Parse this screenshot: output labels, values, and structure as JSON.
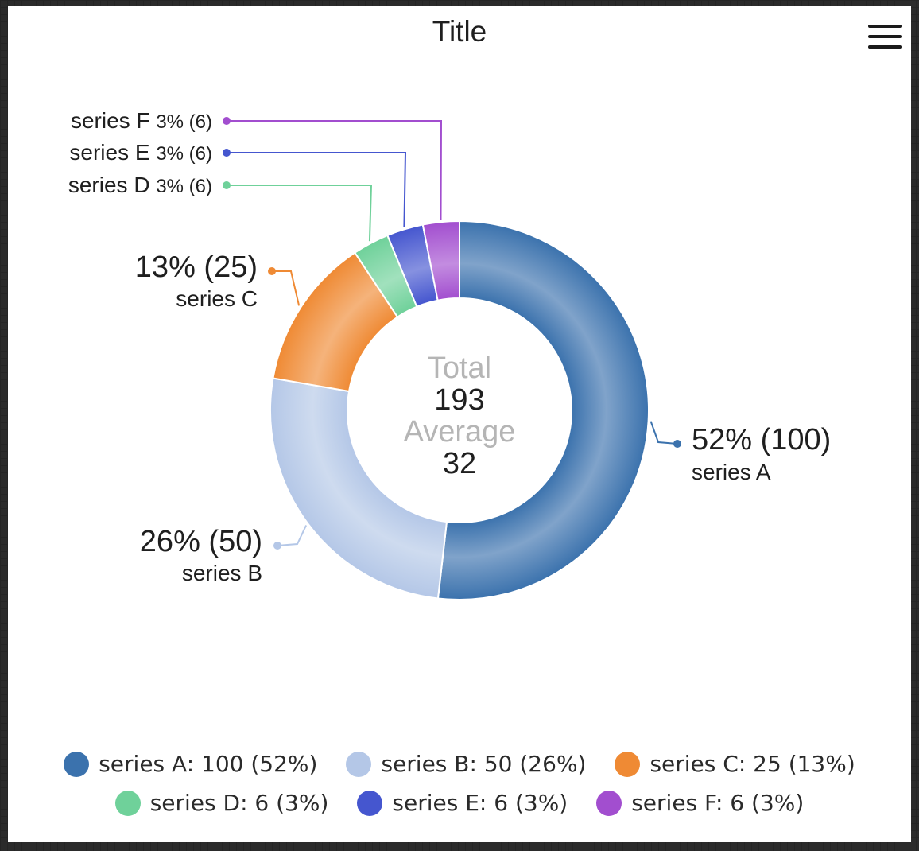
{
  "chart_data": {
    "type": "pie",
    "variant": "donut",
    "title": "Title",
    "categories": [
      "series A",
      "series B",
      "series C",
      "series D",
      "series E",
      "series F"
    ],
    "values": [
      100,
      50,
      25,
      6,
      6,
      6
    ],
    "percentages": [
      "52%",
      "26%",
      "13%",
      "3%",
      "3%",
      "3%"
    ],
    "colors": [
      "#3b72ad",
      "#b4c7e7",
      "#ef8a34",
      "#6fd19a",
      "#4556cf",
      "#a24ecf"
    ],
    "center": {
      "total_label": "Total",
      "total_value": "193",
      "average_label": "Average",
      "average_value": "32"
    },
    "data_labels": [
      {
        "main": "52% (100)",
        "sub": "series A"
      },
      {
        "main": "26% (50)",
        "sub": "series B"
      },
      {
        "main": "13% (25)",
        "sub": "series C"
      },
      {
        "name": "series D",
        "value": "3% (6)"
      },
      {
        "name": "series E",
        "value": "3% (6)"
      },
      {
        "name": "series F",
        "value": "3% (6)"
      }
    ],
    "legend": {
      "position": "bottom",
      "items": [
        "series A: 100 (52%)",
        "series B: 50 (26%)",
        "series C: 25 (13%)",
        "series D: 6 (3%)",
        "series E: 6 (3%)",
        "series F: 6 (3%)"
      ]
    }
  },
  "toolbar": {
    "menu_icon": "hamburger-menu-icon"
  }
}
